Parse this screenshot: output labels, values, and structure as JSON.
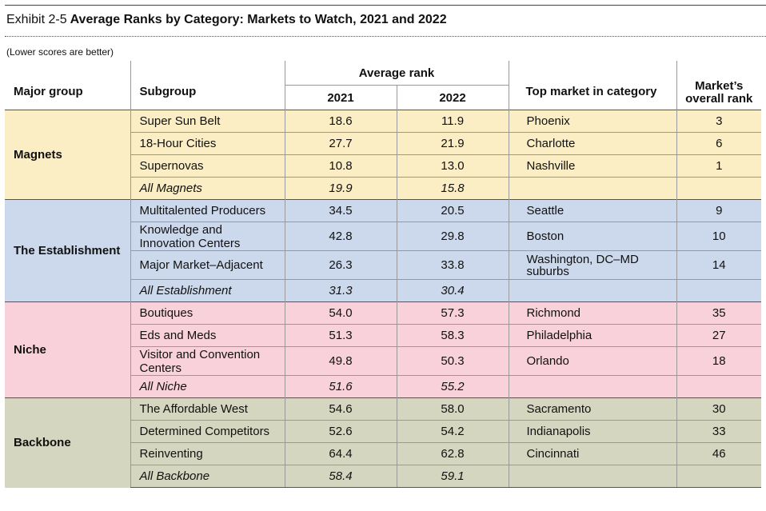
{
  "title": {
    "exhibit": "Exhibit 2-5",
    "main": "Average Ranks by Category: Markets to Watch, 2021 and 2022"
  },
  "note": "(Lower scores are better)",
  "headers": {
    "major_group": "Major group",
    "subgroup": "Subgroup",
    "average_rank": "Average rank",
    "y2021": "2021",
    "y2022": "2022",
    "top_market": "Top market in category",
    "overall_rank_line1": "Market’s",
    "overall_rank_line2": "overall rank"
  },
  "colors": {
    "magnets": "#fbeec4",
    "establishment": "#ccd9ec",
    "niche": "#f8d1da",
    "backbone": "#d5d6bf"
  },
  "groups": [
    {
      "name": "Magnets",
      "rows": [
        {
          "subgroup": "Super Sun Belt",
          "r2021": "18.6",
          "r2022": "11.9",
          "market": "Phoenix",
          "rank": "3"
        },
        {
          "subgroup": "18-Hour Cities",
          "r2021": "27.7",
          "r2022": "21.9",
          "market": "Charlotte",
          "rank": "6"
        },
        {
          "subgroup": "Supernovas",
          "r2021": "10.8",
          "r2022": "13.0",
          "market": "Nashville",
          "rank": "1"
        },
        {
          "subgroup": "All Magnets",
          "r2021": "19.9",
          "r2022": "15.8",
          "market": "",
          "rank": ""
        }
      ]
    },
    {
      "name": "The Establishment",
      "rows": [
        {
          "subgroup": "Multitalented Producers",
          "r2021": "34.5",
          "r2022": "20.5",
          "market": "Seattle",
          "rank": "9"
        },
        {
          "subgroup_l1": "Knowledge and",
          "subgroup_l2": "Innovation Centers",
          "r2021": "42.8",
          "r2022": "29.8",
          "market": "Boston",
          "rank": "10"
        },
        {
          "subgroup": "Major Market–Adjacent",
          "r2021": "26.3",
          "r2022": "33.8",
          "market_l1": "Washington, DC–MD",
          "market_l2": "suburbs",
          "rank": "14"
        },
        {
          "subgroup": "All Establishment",
          "r2021": "31.3",
          "r2022": "30.4",
          "market": "",
          "rank": ""
        }
      ]
    },
    {
      "name": "Niche",
      "rows": [
        {
          "subgroup": "Boutiques",
          "r2021": "54.0",
          "r2022": "57.3",
          "market": "Richmond",
          "rank": "35"
        },
        {
          "subgroup": "Eds and Meds",
          "r2021": "51.3",
          "r2022": "58.3",
          "market": "Philadelphia",
          "rank": "27"
        },
        {
          "subgroup_l1": "Visitor and Convention",
          "subgroup_l2": "Centers",
          "r2021": "49.8",
          "r2022": "50.3",
          "market": "Orlando",
          "rank": "18"
        },
        {
          "subgroup": "All Niche",
          "r2021": "51.6",
          "r2022": "55.2",
          "market": "",
          "rank": ""
        }
      ]
    },
    {
      "name": "Backbone",
      "rows": [
        {
          "subgroup": "The Affordable West",
          "r2021": "54.6",
          "r2022": "58.0",
          "market": "Sacramento",
          "rank": "30"
        },
        {
          "subgroup": "Determined Competitors",
          "r2021": "52.6",
          "r2022": "54.2",
          "market": "Indianapolis",
          "rank": "33"
        },
        {
          "subgroup": "Reinventing",
          "r2021": "64.4",
          "r2022": "62.8",
          "market": "Cincinnati",
          "rank": "46"
        },
        {
          "subgroup": "All Backbone",
          "r2021": "58.4",
          "r2022": "59.1",
          "market": "",
          "rank": ""
        }
      ]
    }
  ]
}
